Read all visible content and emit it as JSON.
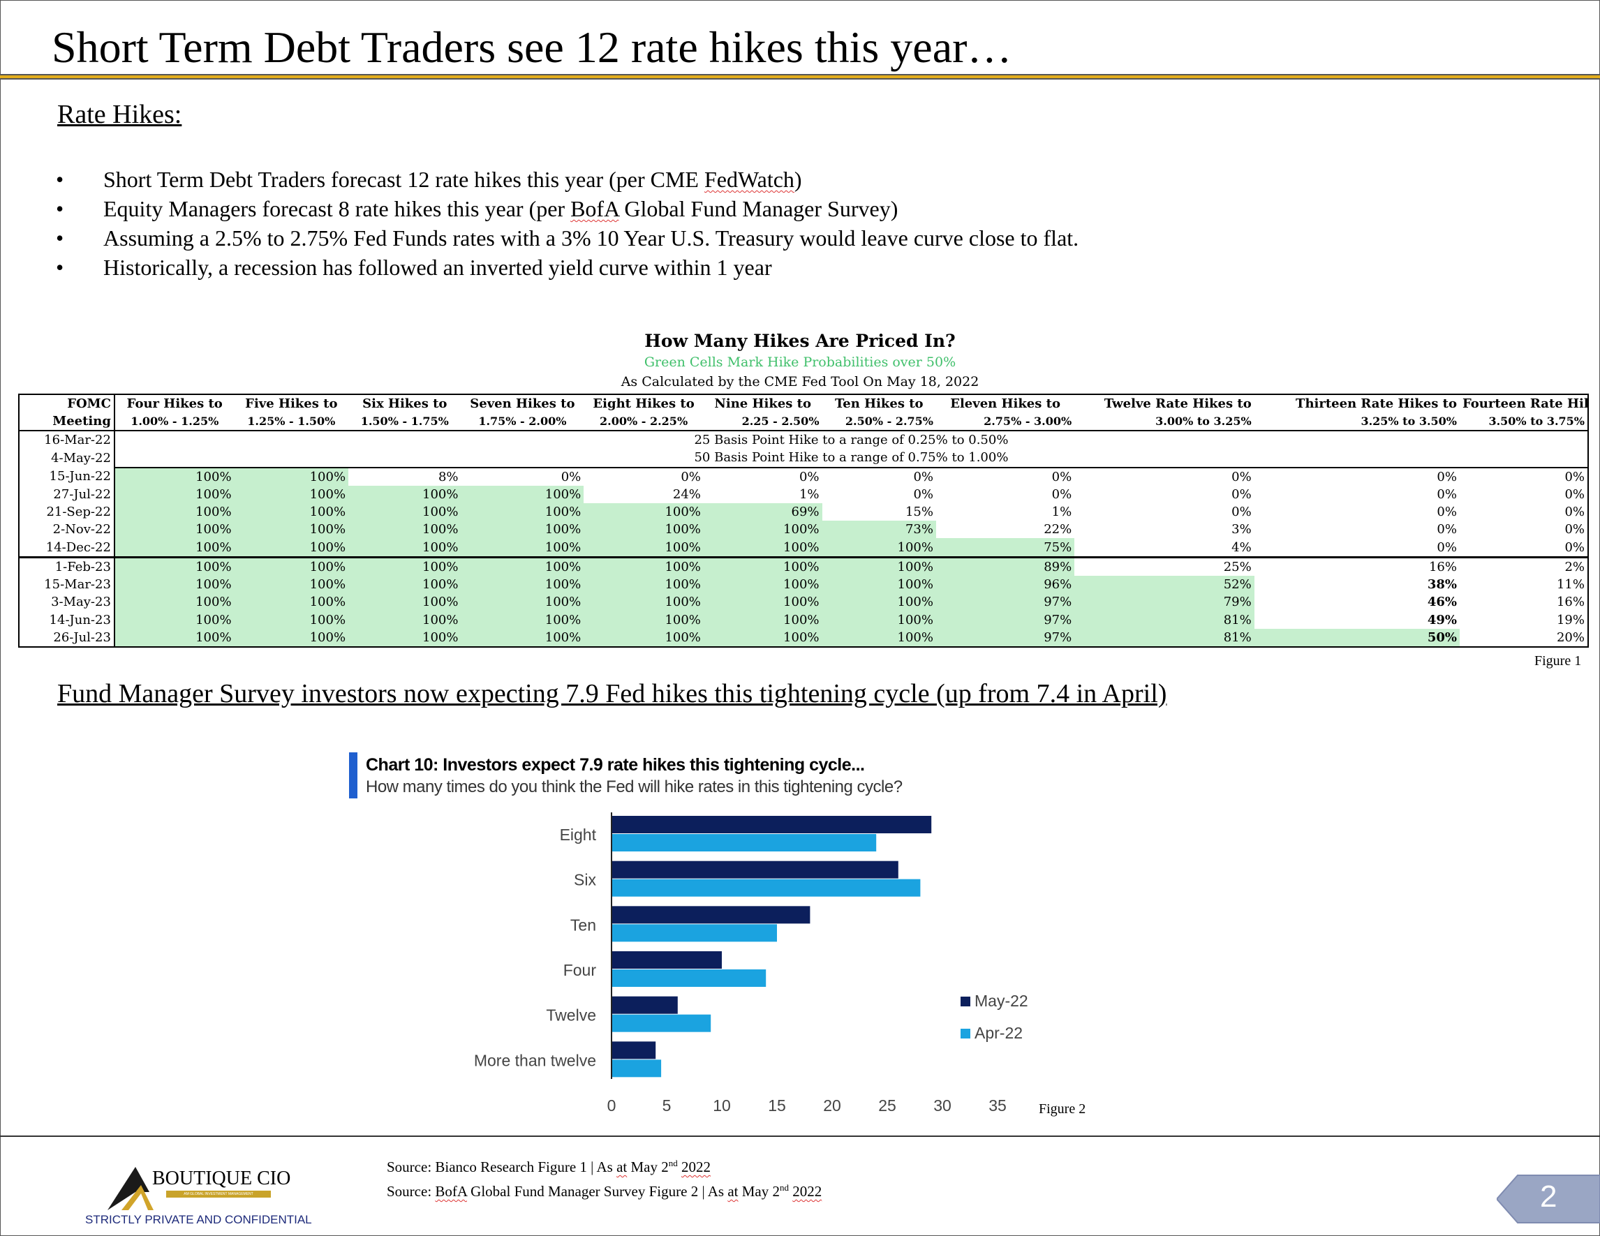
{
  "title": "Short Term Debt Traders see 12 rate hikes this year…",
  "section1": {
    "heading": "Rate Hikes:",
    "bullets": [
      {
        "pre": "Short Term Debt Traders forecast 12 rate hikes this year (per CME ",
        "mark": "FedWatch",
        "post": ")"
      },
      {
        "pre": "Equity Managers forecast 8 rate hikes this year (per ",
        "mark": "BofA",
        "post": " Global Fund Manager Survey)"
      },
      {
        "pre": "Assuming a 2.5% to 2.75% Fed Funds rates with a 3% 10 Year U.S. Treasury would leave curve close to flat.",
        "mark": "",
        "post": ""
      },
      {
        "pre": "Historically, a recession has followed an inverted yield curve within 1 year",
        "mark": "",
        "post": ""
      }
    ]
  },
  "figure1": {
    "title": "How Many Hikes Are Priced In?",
    "subtitle": "Green Cells Mark Hike Probabilities over 50%",
    "calc_note": "As Calculated by the CME Fed Tool On May 18, 2022",
    "header_row1": [
      "FOMC",
      "Four Hikes to",
      "Five Hikes to",
      "Six Hikes to",
      "Seven Hikes to",
      "Eight Hikes to",
      "Nine Hikes to",
      "Ten Hikes to",
      "Eleven Hikes to",
      "Twelve Rate Hikes to",
      "Thirteen Rate Hikes to",
      "Fourteen Rate Hikes"
    ],
    "header_row2": [
      "Meeting",
      "1.00% - 1.25%",
      "1.25% - 1.50%",
      "1.50% - 1.75%",
      "1.75% - 2.00%",
      "2.00% - 2.25%",
      "2.25 - 2.50%",
      "2.50% - 2.75%",
      "2.75% - 3.00%",
      "3.00% to 3.25%",
      "3.25% to 3.50%",
      "3.50% to 3.75%"
    ],
    "past_meetings": [
      {
        "meeting": "16-Mar-22",
        "note": "25 Basis Point Hike to a range of 0.25% to 0.50%"
      },
      {
        "meeting": "4-May-22",
        "note": "50 Basis Point Hike to a range of 0.75% to 1.00%"
      }
    ],
    "rows": [
      {
        "meeting": "15-Jun-22",
        "values": [
          "100%",
          "100%",
          "8%",
          "0%",
          "0%",
          "0%",
          "0%",
          "0%",
          "0%",
          "0%",
          "0%"
        ]
      },
      {
        "meeting": "27-Jul-22",
        "values": [
          "100%",
          "100%",
          "100%",
          "100%",
          "24%",
          "1%",
          "0%",
          "0%",
          "0%",
          "0%",
          "0%"
        ]
      },
      {
        "meeting": "21-Sep-22",
        "values": [
          "100%",
          "100%",
          "100%",
          "100%",
          "100%",
          "69%",
          "15%",
          "1%",
          "0%",
          "0%",
          "0%"
        ]
      },
      {
        "meeting": "2-Nov-22",
        "values": [
          "100%",
          "100%",
          "100%",
          "100%",
          "100%",
          "100%",
          "73%",
          "22%",
          "3%",
          "0%",
          "0%"
        ]
      },
      {
        "meeting": "14-Dec-22",
        "values": [
          "100%",
          "100%",
          "100%",
          "100%",
          "100%",
          "100%",
          "100%",
          "75%",
          "4%",
          "0%",
          "0%"
        ]
      },
      {
        "meeting": "1-Feb-23",
        "values": [
          "100%",
          "100%",
          "100%",
          "100%",
          "100%",
          "100%",
          "100%",
          "89%",
          "25%",
          "16%",
          "2%"
        ]
      },
      {
        "meeting": "15-Mar-23",
        "values": [
          "100%",
          "100%",
          "100%",
          "100%",
          "100%",
          "100%",
          "100%",
          "96%",
          "52%",
          "38%",
          "11%"
        ]
      },
      {
        "meeting": "3-May-23",
        "values": [
          "100%",
          "100%",
          "100%",
          "100%",
          "100%",
          "100%",
          "100%",
          "97%",
          "79%",
          "46%",
          "16%"
        ]
      },
      {
        "meeting": "14-Jun-23",
        "values": [
          "100%",
          "100%",
          "100%",
          "100%",
          "100%",
          "100%",
          "100%",
          "97%",
          "81%",
          "49%",
          "19%"
        ]
      },
      {
        "meeting": "26-Jul-23",
        "values": [
          "100%",
          "100%",
          "100%",
          "100%",
          "100%",
          "100%",
          "100%",
          "97%",
          "81%",
          "50%",
          "20%"
        ]
      }
    ],
    "label": "Figure 1"
  },
  "section2": {
    "heading": "Fund Manager Survey investors now expecting 7.9 Fed hikes this tightening cycle (up from 7.4 in April)"
  },
  "chart_data": {
    "type": "bar",
    "orientation": "horizontal",
    "title": "Chart 10: Investors expect 7.9 rate hikes this tightening cycle...",
    "subtitle": "How many times do you think the Fed will hike rates in this tightening cycle?",
    "categories": [
      "Eight",
      "Six",
      "Ten",
      "Four",
      "Twelve",
      "More than twelve"
    ],
    "series": [
      {
        "name": "May-22",
        "color": "#0c1f5c",
        "values": [
          29,
          26,
          18,
          10,
          6,
          4
        ]
      },
      {
        "name": "Apr-22",
        "color": "#1ba3e0",
        "values": [
          24,
          28,
          15,
          14,
          9,
          4.5
        ]
      }
    ],
    "xlim": [
      0,
      35
    ],
    "xticks": [
      0,
      5,
      10,
      15,
      20,
      25,
      30,
      35
    ],
    "legend": "right",
    "grid": false
  },
  "figure2_label": "Figure 2",
  "footer": {
    "source1": {
      "pre": "Source: Bianco Research Figure 1 | As ",
      "at": "at",
      "mid": " May 2",
      "sup": "nd",
      "year": "2022"
    },
    "source2": {
      "pre": "Source: ",
      "bofa": "BofA",
      "mid1": " Global Fund Manager Survey Figure 2 | As ",
      "at": "at",
      "mid2": " May 2",
      "sup": "nd",
      "year": "2022"
    },
    "logo_name": "BOUTIQUE CIO",
    "logo_tagline": "AM GLOBAL INVESTMENT MANAGEMENT",
    "confidential": "STRICTLY PRIVATE AND CONFIDENTIAL",
    "page_number": "2"
  }
}
